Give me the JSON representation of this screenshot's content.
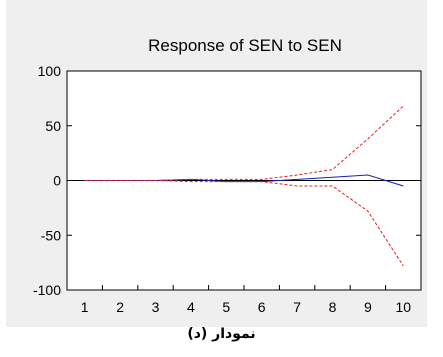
{
  "chart_data": {
    "type": "line",
    "title": "Response of SEN to SEN",
    "xlabel": "",
    "ylabel": "",
    "x": [
      1,
      2,
      3,
      4,
      5,
      6,
      7,
      8,
      9,
      10
    ],
    "ylim": [
      -100,
      100
    ],
    "yticks": [
      -100,
      -50,
      0,
      50,
      100
    ],
    "grid": false,
    "legend": "none",
    "zero_line": true,
    "series": [
      {
        "role": "response",
        "color": "#1c1cbf",
        "dash": "solid",
        "values": [
          0,
          0,
          0,
          1,
          -1,
          -1,
          1,
          3,
          5,
          -5
        ]
      },
      {
        "role": "upper band",
        "color": "#e02020",
        "dash": "dashed",
        "values": [
          0,
          0,
          0,
          1,
          1,
          1,
          5,
          10,
          38,
          68
        ]
      },
      {
        "role": "lower band",
        "color": "#e02020",
        "dash": "dashed",
        "values": [
          0,
          0,
          0,
          -1,
          -1,
          -1,
          -5,
          -5,
          -28,
          -78
        ]
      }
    ]
  },
  "caption": "نمودار (د)"
}
